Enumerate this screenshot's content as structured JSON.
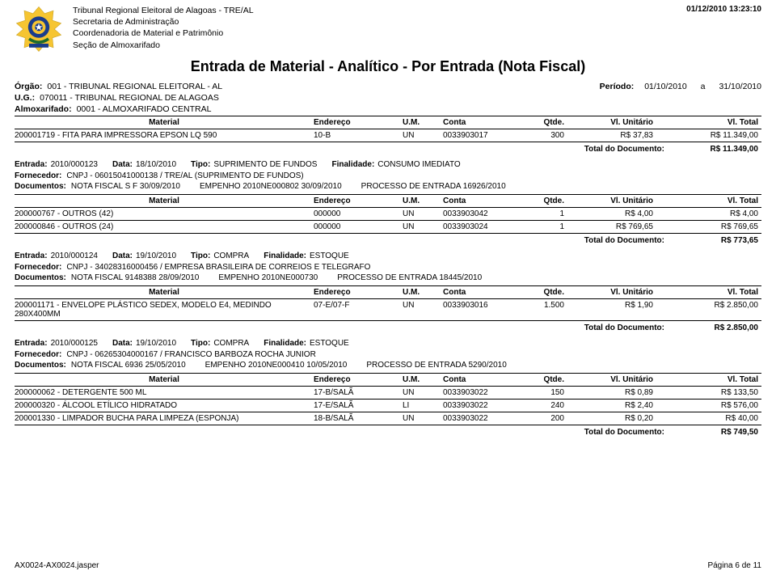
{
  "datetime": "01/12/2010 13:23:10",
  "org": {
    "line1": "Tribunal Regional Eleitoral de Alagoas - TRE/AL",
    "line2": "Secretaria de Administração",
    "line3": "Coordenadoria de Material e Patrimônio",
    "line4": "Seção de Almoxarifado"
  },
  "title": "Entrada de Material - Analítico - Por Entrada (Nota Fiscal)",
  "orgao": {
    "label": "Órgão:",
    "value": "001 - TRIBUNAL REGIONAL ELEITORAL - AL"
  },
  "ug": {
    "label": "U.G.:",
    "value": "070011 - TRIBUNAL REGIONAL DE ALAGOAS"
  },
  "almox": {
    "label": "Almoxarifado:",
    "value": "0001 - ALMOXARIFADO CENTRAL"
  },
  "periodo": {
    "label": "Período:",
    "from": "01/10/2010",
    "sep": "a",
    "to": "31/10/2010"
  },
  "cols": {
    "material": "Material",
    "endereco": "Endereço",
    "um": "U.M.",
    "conta": "Conta",
    "qtde": "Qtde.",
    "unit": "Vl. Unitário",
    "total": "Vl. Total"
  },
  "total_label": "Total do Documento:",
  "labels": {
    "entrada": "Entrada:",
    "data": "Data:",
    "tipo": "Tipo:",
    "finalidade": "Finalidade:",
    "fornecedor": "Fornecedor:",
    "documentos": "Documentos:"
  },
  "block0": {
    "rows": [
      {
        "mat": "200001719 - FITA PARA IMPRESSORA EPSON LQ 590",
        "end": "10-B",
        "um": "UN",
        "conta": "0033903017",
        "qtde": "300",
        "unit": "R$ 37,83",
        "tot": "R$ 11.349,00"
      }
    ],
    "total": "R$ 11.349,00"
  },
  "entries": [
    {
      "entrada": "2010/000123",
      "data": "18/10/2010",
      "tipo": "SUPRIMENTO DE FUNDOS",
      "finalidade": "CONSUMO IMEDIATO",
      "fornecedor": "CNPJ - 06015041000138 / TRE/AL (SUPRIMENTO DE FUNDOS)",
      "docs1": "NOTA FISCAL  S F  30/09/2010",
      "docs2": "EMPENHO 2010NE000802  30/09/2010",
      "docs3": "PROCESSO DE ENTRADA 16926/2010",
      "rows": [
        {
          "mat": "200000767 - OUTROS (42)",
          "end": "000000",
          "um": "UN",
          "conta": "0033903042",
          "qtde": "1",
          "unit": "R$ 4,00",
          "tot": "R$ 4,00"
        },
        {
          "mat": "200000846 - OUTROS (24)",
          "end": "000000",
          "um": "UN",
          "conta": "0033903024",
          "qtde": "1",
          "unit": "R$ 769,65",
          "tot": "R$ 769,65"
        }
      ],
      "total": "R$ 773,65"
    },
    {
      "entrada": "2010/000124",
      "data": "19/10/2010",
      "tipo": "COMPRA",
      "finalidade": "ESTOQUE",
      "fornecedor": "CNPJ - 34028316000456 / EMPRESA BRASILEIRA DE CORREIOS E TELEGRAFO",
      "docs1": "NOTA FISCAL 9148388  28/09/2010",
      "docs2": "EMPENHO 2010NE000730",
      "docs3": "PROCESSO DE ENTRADA 18445/2010",
      "rows": [
        {
          "mat": "200001171 - ENVELOPE PLÁSTICO SEDEX, MODELO E4, MEDINDO 280X400MM",
          "end": "07-E/07-F",
          "um": "UN",
          "conta": "0033903016",
          "qtde": "1.500",
          "unit": "R$ 1,90",
          "tot": "R$ 2.850,00"
        }
      ],
      "total": "R$ 2.850,00"
    },
    {
      "entrada": "2010/000125",
      "data": "19/10/2010",
      "tipo": "COMPRA",
      "finalidade": "ESTOQUE",
      "fornecedor": "CNPJ - 06265304000167 / FRANCISCO BARBOZA ROCHA JUNIOR",
      "docs1": "NOTA FISCAL 6936  25/05/2010",
      "docs2": "EMPENHO 2010NE000410  10/05/2010",
      "docs3": "PROCESSO DE ENTRADA 5290/2010",
      "rows": [
        {
          "mat": "200000062 - DETERGENTE 500 ML",
          "end": "17-B/SALÃ",
          "um": "UN",
          "conta": "0033903022",
          "qtde": "150",
          "unit": "R$ 0,89",
          "tot": "R$ 133,50"
        },
        {
          "mat": "200000320 - ÁLCOOL  ETÍLICO HIDRATADO",
          "end": "17-E/SALÃ",
          "um": "LI",
          "conta": "0033903022",
          "qtde": "240",
          "unit": "R$ 2,40",
          "tot": "R$ 576,00"
        },
        {
          "mat": "200001330 - LIMPADOR BUCHA PARA LIMPEZA (ESPONJA)",
          "end": "18-B/SALÃ",
          "um": "UN",
          "conta": "0033903022",
          "qtde": "200",
          "unit": "R$ 0,20",
          "tot": "R$ 40,00"
        }
      ],
      "total": "R$ 749,50"
    }
  ],
  "footer": {
    "left": "AX0024-AX0024.jasper",
    "right": "Página 6 de 11"
  },
  "style": {
    "page_bg": "#ffffff",
    "text_color": "#000000",
    "border_color": "#000000",
    "font_family": "Arial",
    "base_font_size_pt": 8,
    "title_font_size_pt": 14,
    "emblem_colors": {
      "blue": "#1a3c8c",
      "yellow": "#f6c531",
      "green": "#1e6b2d",
      "gold": "#c9a227"
    }
  }
}
